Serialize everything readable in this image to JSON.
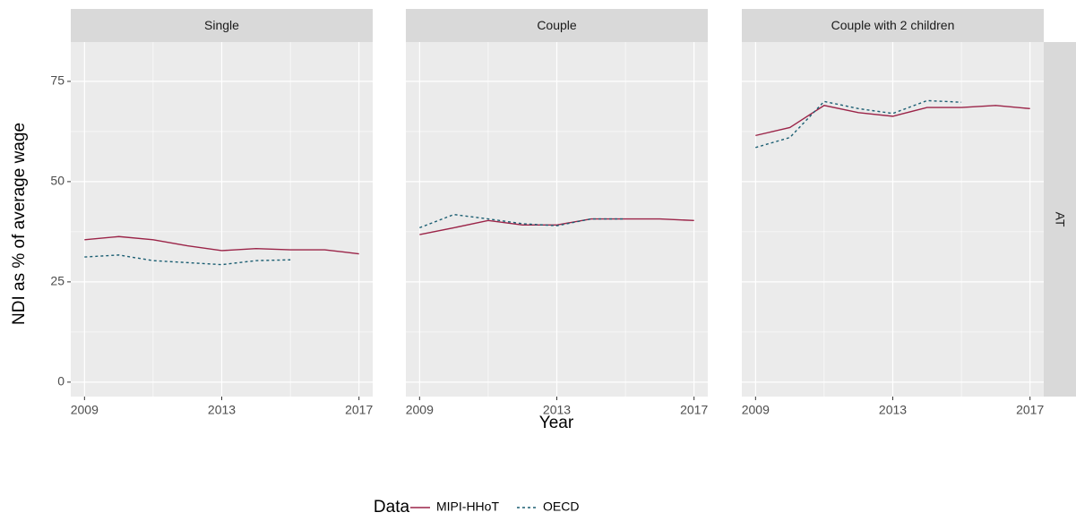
{
  "chart_data": [
    {
      "type": "line",
      "title": "Single",
      "x": [
        2009,
        2010,
        2011,
        2012,
        2013,
        2014,
        2015,
        2016,
        2017
      ],
      "series": [
        {
          "name": "MIPI-HHoT",
          "color": "#9b2448",
          "linetype": "solid",
          "values": [
            35.5,
            36.3,
            35.5,
            34.0,
            32.8,
            33.3,
            33.0,
            33.0,
            32.0
          ]
        },
        {
          "name": "OECD",
          "color": "#1b5e72",
          "linetype": "dotted",
          "values": [
            31.2,
            31.7,
            30.3,
            29.8,
            29.3,
            30.3,
            30.5,
            null,
            null
          ]
        }
      ],
      "xlim": [
        2008.6,
        2017.4
      ],
      "xticks": [
        2009,
        2013,
        2017
      ],
      "minor_xticks": [
        2011,
        2015
      ],
      "ylim": [
        -3.6,
        84.8
      ],
      "yticks": [
        0,
        25,
        50,
        75
      ],
      "minor_yticks": [
        12.5,
        37.5,
        62.5
      ],
      "grid": true
    },
    {
      "type": "line",
      "title": "Couple",
      "x": [
        2009,
        2010,
        2011,
        2012,
        2013,
        2014,
        2015,
        2016,
        2017
      ],
      "series": [
        {
          "name": "MIPI-HHoT",
          "color": "#9b2448",
          "linetype": "solid",
          "values": [
            36.8,
            38.5,
            40.3,
            39.2,
            39.2,
            40.7,
            40.7,
            40.7,
            40.3
          ]
        },
        {
          "name": "OECD",
          "color": "#1b5e72",
          "linetype": "dotted",
          "values": [
            38.5,
            41.8,
            40.7,
            39.5,
            39.0,
            40.7,
            40.7,
            null,
            null
          ]
        }
      ],
      "xlim": [
        2008.6,
        2017.4
      ],
      "xticks": [
        2009,
        2013,
        2017
      ],
      "minor_xticks": [
        2011,
        2015
      ],
      "ylim": [
        -3.6,
        84.8
      ],
      "yticks": [
        0,
        25,
        50,
        75
      ],
      "minor_yticks": [
        12.5,
        37.5,
        62.5
      ],
      "grid": true
    },
    {
      "type": "line",
      "title": "Couple with 2 children",
      "x": [
        2009,
        2010,
        2011,
        2012,
        2013,
        2014,
        2015,
        2016,
        2017
      ],
      "series": [
        {
          "name": "MIPI-HHoT",
          "color": "#9b2448",
          "linetype": "solid",
          "values": [
            61.5,
            63.5,
            69.0,
            67.2,
            66.3,
            68.5,
            68.5,
            69.0,
            68.2
          ]
        },
        {
          "name": "OECD",
          "color": "#1b5e72",
          "linetype": "dotted",
          "values": [
            58.5,
            61.0,
            70.0,
            68.2,
            67.0,
            70.2,
            69.8,
            null,
            null
          ]
        }
      ],
      "xlim": [
        2008.6,
        2017.4
      ],
      "xticks": [
        2009,
        2013,
        2017
      ],
      "minor_xticks": [
        2011,
        2015
      ],
      "ylim": [
        -3.6,
        84.8
      ],
      "yticks": [
        0,
        25,
        50,
        75
      ],
      "minor_yticks": [
        12.5,
        37.5,
        62.5
      ],
      "grid": true
    }
  ],
  "y_label": "NDI as % of average wage",
  "x_label": "Year",
  "row_label": "AT",
  "legend_title": "Data"
}
